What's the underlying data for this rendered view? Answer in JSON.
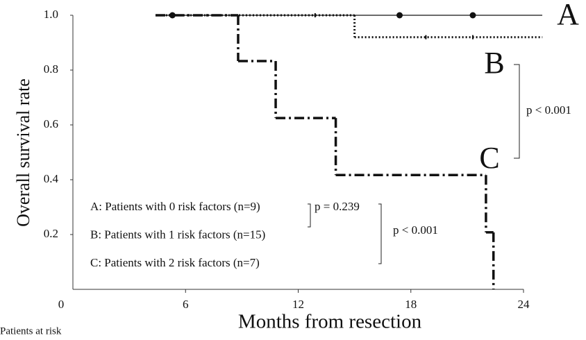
{
  "chart_data": {
    "type": "step",
    "x_label": "Months from resection",
    "y_label": "Overall survival rate",
    "footnote": "Patients at risk",
    "xlim": [
      0,
      25
    ],
    "ylim": [
      0,
      1
    ],
    "xticks": [
      0,
      6,
      12,
      18,
      24
    ],
    "yticks": [
      0.2,
      0.4,
      0.6,
      0.8,
      {
        "value": 1,
        "label": "1.0"
      }
    ],
    "series": [
      {
        "name": "A",
        "legend": "A: Patients with 0 risk factors (n=9)",
        "color": "#111111",
        "style": "solid",
        "width": 1.3,
        "x": [
          4.4,
          25
        ],
        "values": [
          1,
          1
        ],
        "censored": {
          "x": [
            5.3,
            17.4,
            21.3
          ],
          "values": [
            1,
            1,
            1
          ]
        }
      },
      {
        "name": "B",
        "legend": "B: Patients with 1 risk factors (n=15)",
        "color": "#111111",
        "style": "dotted",
        "width": 3,
        "x": [
          4.4,
          15.0,
          25
        ],
        "values": [
          1,
          0.92,
          0.92
        ],
        "censored": {
          "x": [
            12.9,
            18.8,
            21.3
          ],
          "values": [
            1,
            0.92,
            0.92
          ]
        }
      },
      {
        "name": "C",
        "legend": "C: Patients with 2 risk factors (n=7)",
        "color": "#111111",
        "style": "dashdot",
        "width": 3.5,
        "x": [
          4.4,
          8.8,
          10.8,
          14.0,
          22.0,
          22.4
        ],
        "values": [
          1,
          0.833,
          0.625,
          0.417,
          0.208,
          0
        ]
      }
    ],
    "annotations": [
      "p < 0.001",
      "p = 0.239",
      "p < 0.001"
    ]
  }
}
